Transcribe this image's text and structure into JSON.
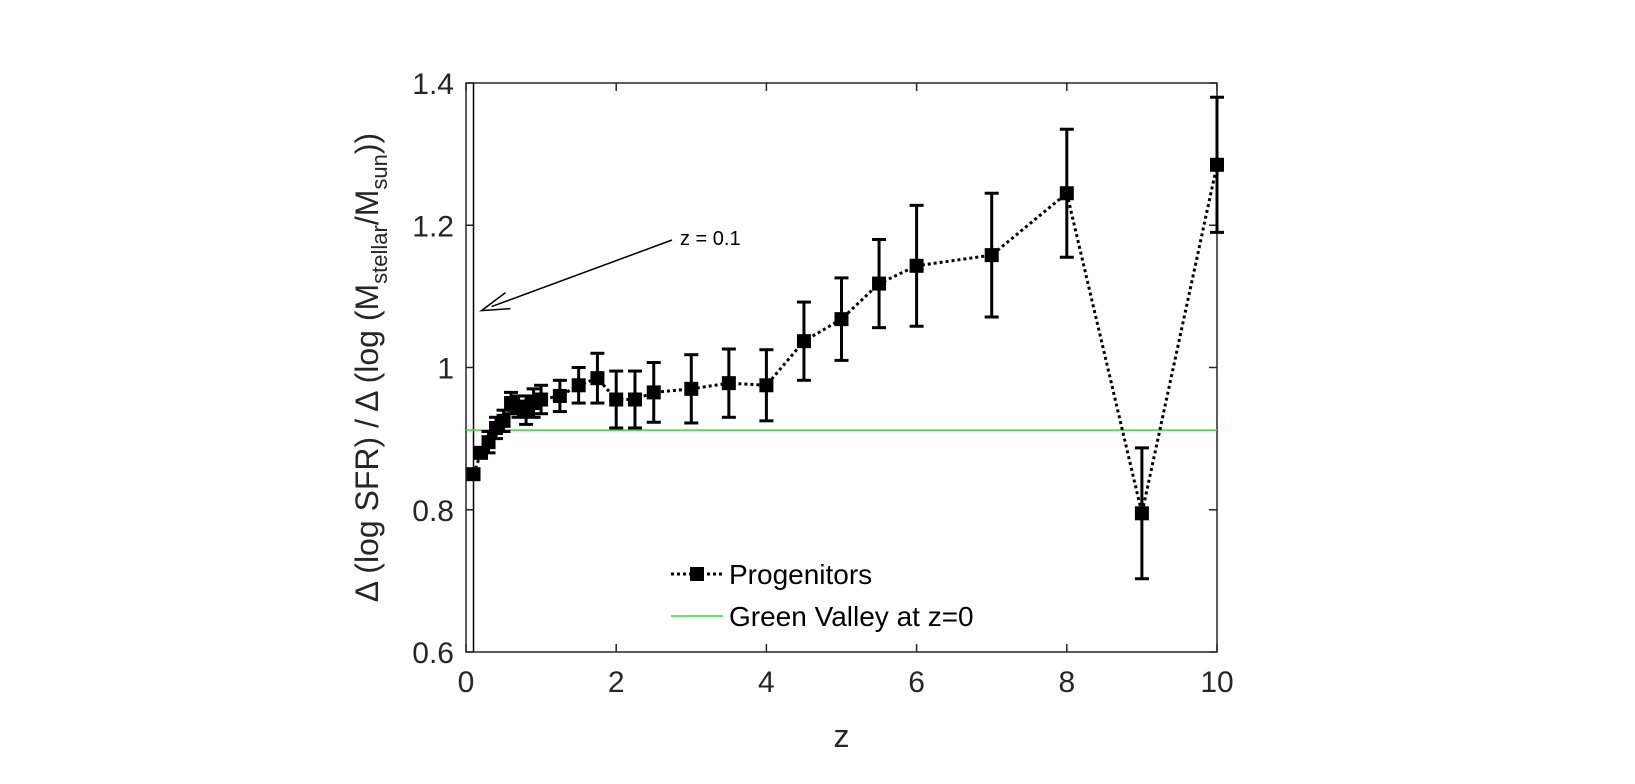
{
  "chart_data": {
    "type": "line",
    "title": "",
    "xlabel": "z",
    "ylabel": {
      "prefix": "Δ (log SFR) / Δ (log (M",
      "sub1": "stellar",
      "mid": "/M",
      "sub2": "sun",
      "suffix": "))"
    },
    "xlim": [
      0,
      10
    ],
    "ylim": [
      0.6,
      1.4
    ],
    "x_ticks": [
      "0",
      "2",
      "4",
      "6",
      "8",
      "10"
    ],
    "x_tick_values": [
      0,
      2,
      4,
      6,
      8,
      10
    ],
    "y_ticks": [
      "0.6",
      "0.8",
      "1",
      "1.2",
      "1.4"
    ],
    "y_tick_values": [
      0.6,
      0.8,
      1.0,
      1.2,
      1.4
    ],
    "grid": false,
    "legend_position": "bottom-center",
    "series": [
      {
        "name": "Progenitors",
        "style": "dotted line with square markers",
        "color": "#000000",
        "x": [
          0.1,
          0.2,
          0.3,
          0.4,
          0.5,
          0.6,
          0.7,
          0.8,
          0.9,
          1.0,
          1.25,
          1.5,
          1.75,
          2.0,
          2.25,
          2.5,
          3.0,
          3.5,
          4.0,
          4.5,
          5.0,
          5.5,
          6.0,
          7.0,
          8.0,
          9.0,
          10.0
        ],
        "y": [
          0.85,
          0.88,
          0.895,
          0.915,
          0.925,
          0.95,
          0.945,
          0.94,
          0.95,
          0.955,
          0.96,
          0.975,
          0.985,
          0.955,
          0.955,
          0.965,
          0.97,
          0.978,
          0.975,
          1.037,
          1.068,
          1.118,
          1.143,
          1.158,
          1.245,
          0.795,
          1.285
        ],
        "err": [
          0.0,
          0.0,
          0.015,
          0.015,
          0.015,
          0.015,
          0.015,
          0.02,
          0.02,
          0.02,
          0.022,
          0.025,
          0.035,
          0.04,
          0.04,
          0.042,
          0.048,
          0.048,
          0.05,
          0.055,
          0.058,
          0.062,
          0.085,
          0.087,
          0.09,
          0.092,
          0.095
        ]
      },
      {
        "name": "Green Valley at z=0",
        "style": "solid line",
        "color": "#33dd33",
        "y_constant": 0.912
      }
    ],
    "annotation": {
      "text": "z = 0.1",
      "points_to_x": 0.1,
      "points_to_y": 1.08
    }
  }
}
